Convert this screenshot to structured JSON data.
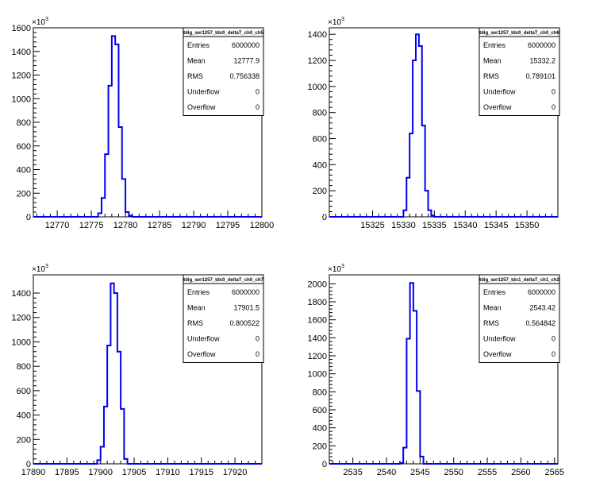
{
  "chart_data": [
    {
      "type": "histogram",
      "title": "tdig_ser1257_tdc0_deltaT_ch0_ch5",
      "y_multiplier": "×10",
      "y_multiplier_exp": "3",
      "xlim": [
        12766.5,
        12800
      ],
      "ylim": [
        0,
        1600
      ],
      "xticks": [
        12770,
        12775,
        12780,
        12785,
        12790,
        12795,
        12800
      ],
      "yticks": [
        0,
        200,
        400,
        600,
        800,
        1000,
        1200,
        1400,
        1600
      ],
      "bin_width": 0.5,
      "bins_x": [
        12776.0,
        12776.5,
        12777.0,
        12777.5,
        12778.0,
        12778.5,
        12779.0,
        12779.5,
        12780.0,
        12780.5
      ],
      "bins_y": [
        30,
        160,
        530,
        1110,
        1530,
        1460,
        760,
        320,
        40,
        10
      ],
      "stats": {
        "labels": [
          "Entries",
          "Mean",
          "RMS",
          "Underflow",
          "Overflow"
        ],
        "values": [
          "6000000",
          "12777.9",
          "0.756338",
          "0",
          "0"
        ]
      }
    },
    {
      "type": "histogram",
      "title": "tdig_ser1257_tdc0_deltaT_ch0_ch6",
      "y_multiplier": "×10",
      "y_multiplier_exp": "3",
      "xlim": [
        15318,
        15355
      ],
      "ylim": [
        0,
        1450
      ],
      "xticks": [
        15325,
        15330,
        15335,
        15340,
        15345,
        15350
      ],
      "yticks": [
        0,
        200,
        400,
        600,
        800,
        1000,
        1200,
        1400
      ],
      "bin_width": 0.5,
      "bins_x": [
        15330.0,
        15330.5,
        15331.0,
        15331.5,
        15332.0,
        15332.5,
        15333.0,
        15333.5,
        15334.0,
        15334.5
      ],
      "bins_y": [
        50,
        300,
        640,
        1200,
        1400,
        1310,
        700,
        200,
        50,
        10
      ],
      "stats": {
        "labels": [
          "Entries",
          "Mean",
          "RMS",
          "Underflow",
          "Overflow"
        ],
        "values": [
          "6000000",
          "15332.2",
          "0.789101",
          "0",
          "0"
        ]
      }
    },
    {
      "type": "histogram",
      "title": "tdig_ser1257_tdc0_deltaT_ch0_ch7",
      "y_multiplier": "×10",
      "y_multiplier_exp": "3",
      "xlim": [
        17890,
        17924
      ],
      "ylim": [
        0,
        1550
      ],
      "xticks": [
        17890,
        17895,
        17900,
        17905,
        17910,
        17915,
        17920
      ],
      "yticks": [
        0,
        200,
        400,
        600,
        800,
        1000,
        1200,
        1400
      ],
      "bin_width": 0.5,
      "bins_x": [
        17899.5,
        17900.0,
        17900.5,
        17901.0,
        17901.5,
        17902.0,
        17902.5,
        17903.0,
        17903.5
      ],
      "bins_y": [
        30,
        140,
        470,
        970,
        1480,
        1400,
        920,
        450,
        40
      ],
      "stats": {
        "labels": [
          "Entries",
          "Mean",
          "RMS",
          "Underflow",
          "Overflow"
        ],
        "values": [
          "6000000",
          "17901.5",
          "0.800522",
          "0",
          "0"
        ]
      }
    },
    {
      "type": "histogram",
      "title": "tdig_ser1257_tdc1_deltaT_ch1_ch2",
      "y_multiplier": "×10",
      "y_multiplier_exp": "3",
      "xlim": [
        2531.5,
        2565.5
      ],
      "ylim": [
        0,
        2100
      ],
      "xticks": [
        2535,
        2540,
        2545,
        2550,
        2555,
        2560,
        2565
      ],
      "yticks": [
        0,
        200,
        400,
        600,
        800,
        1000,
        1200,
        1400,
        1600,
        1800,
        2000
      ],
      "bin_width": 0.5,
      "bins_x": [
        2542.0,
        2542.5,
        2543.0,
        2543.5,
        2544.0,
        2544.5,
        2545.0
      ],
      "bins_y": [
        10,
        180,
        1390,
        2010,
        1700,
        810,
        80
      ],
      "stats": {
        "labels": [
          "Entries",
          "Mean",
          "RMS",
          "Underflow",
          "Overflow"
        ],
        "values": [
          "6000000",
          "2543.42",
          "0.564842",
          "0",
          "0"
        ]
      }
    }
  ]
}
